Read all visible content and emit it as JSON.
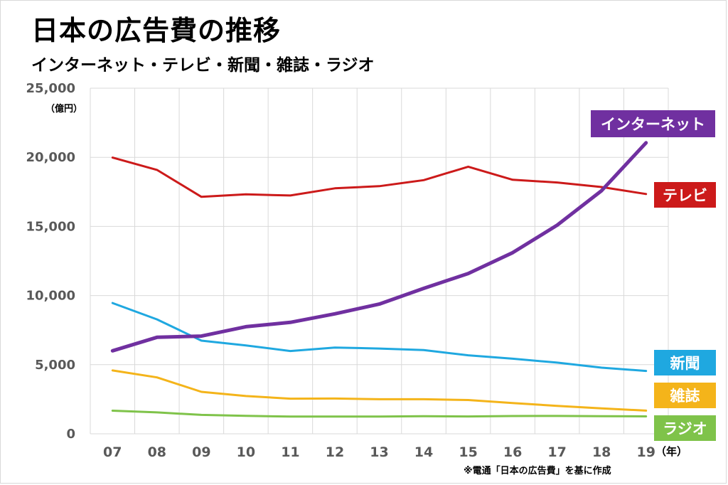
{
  "title": "日本の広告費の推移",
  "subtitle": "インターネット・テレビ・新聞・雑誌・ラジオ",
  "footnote": "※電通「日本の広告費」を基に作成",
  "chart_data": {
    "type": "line",
    "y_unit": "（億円）",
    "x_unit": "（年）",
    "categories": [
      "07",
      "08",
      "09",
      "10",
      "11",
      "12",
      "13",
      "14",
      "15",
      "16",
      "17",
      "18",
      "19"
    ],
    "y_ticks": [
      "0",
      "5,000",
      "10,000",
      "15,000",
      "20,000",
      "25,000"
    ],
    "ylim": [
      0,
      25000
    ],
    "grid": true,
    "series": [
      {
        "name": "インターネット",
        "color": "#7030a0",
        "values": [
          6003,
          6983,
          7069,
          7747,
          8062,
          8680,
          9381,
          10519,
          11594,
          13100,
          15094,
          17589,
          21048
        ]
      },
      {
        "name": "テレビ",
        "color": "#cc1a1a",
        "values": [
          19981,
          19092,
          17139,
          17321,
          17237,
          17757,
          17913,
          18347,
          19323,
          18374,
          18178,
          17848,
          17345
        ]
      },
      {
        "name": "新聞",
        "color": "#1fa8e0",
        "values": [
          9462,
          8276,
          6739,
          6396,
          5990,
          6242,
          6170,
          6057,
          5679,
          5431,
          5147,
          4784,
          4547
        ]
      },
      {
        "name": "雑誌",
        "color": "#f4b41a",
        "values": [
          4585,
          4078,
          3034,
          2733,
          2542,
          2551,
          2499,
          2500,
          2443,
          2223,
          2023,
          1841,
          1675
        ]
      },
      {
        "name": "ラジオ",
        "color": "#7fc34a",
        "values": [
          1671,
          1549,
          1370,
          1299,
          1247,
          1246,
          1243,
          1272,
          1254,
          1285,
          1290,
          1278,
          1260
        ]
      }
    ]
  }
}
